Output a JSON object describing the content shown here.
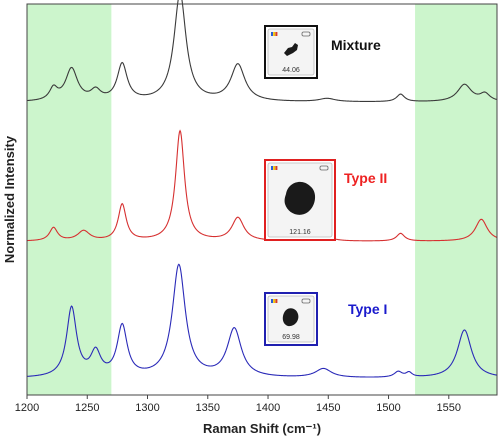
{
  "chart_data": {
    "type": "line",
    "xlabel": "Raman Shift (cm⁻¹)",
    "ylabel": "Normalized Intensity",
    "xlim": [
      1200,
      1590
    ],
    "xticks": [
      "1200",
      "1250",
      "1300",
      "1350",
      "1400",
      "1450",
      "1500",
      "1550"
    ],
    "shaded_regions": [
      [
        1200,
        1270
      ],
      [
        1522,
        1590
      ]
    ],
    "shade_color": "#ccf5cc",
    "grid": false,
    "series": [
      {
        "name": "Mixture",
        "color": "#3a3a3a",
        "label_color": "#111111",
        "inset_value": "44.06",
        "baseline": 0.09,
        "peaks": [
          [
            1222,
            0.11,
            4
          ],
          [
            1237,
            0.3,
            6
          ],
          [
            1257,
            0.09,
            5
          ],
          [
            1279,
            0.34,
            5
          ],
          [
            1327,
            1.0,
            6
          ],
          [
            1375,
            0.34,
            7
          ],
          [
            1449,
            0.03,
            8
          ],
          [
            1510,
            0.07,
            4
          ],
          [
            1563,
            0.16,
            7
          ],
          [
            1580,
            0.07,
            5
          ]
        ]
      },
      {
        "name": "Type II",
        "color": "#d63030",
        "label_color": "#ee2222",
        "inset_value": "121.16",
        "baseline": 0.06,
        "peaks": [
          [
            1222,
            0.12,
            4
          ],
          [
            1247,
            0.09,
            6
          ],
          [
            1279,
            0.33,
            4
          ],
          [
            1327,
            1.0,
            4.5
          ],
          [
            1375,
            0.21,
            6
          ],
          [
            1449,
            0.03,
            8
          ],
          [
            1510,
            0.07,
            4
          ],
          [
            1577,
            0.2,
            6
          ]
        ]
      },
      {
        "name": "Type I",
        "color": "#2a2ab8",
        "label_color": "#1a1acc",
        "inset_value": "69.98",
        "baseline": 0.05,
        "peaks": [
          [
            1237,
            0.62,
            5
          ],
          [
            1257,
            0.21,
            5
          ],
          [
            1279,
            0.45,
            5
          ],
          [
            1326,
            1.0,
            6.5
          ],
          [
            1372,
            0.43,
            7
          ],
          [
            1446,
            0.08,
            8
          ],
          [
            1508,
            0.05,
            4
          ],
          [
            1517,
            0.04,
            3
          ],
          [
            1563,
            0.43,
            7
          ]
        ]
      }
    ]
  }
}
